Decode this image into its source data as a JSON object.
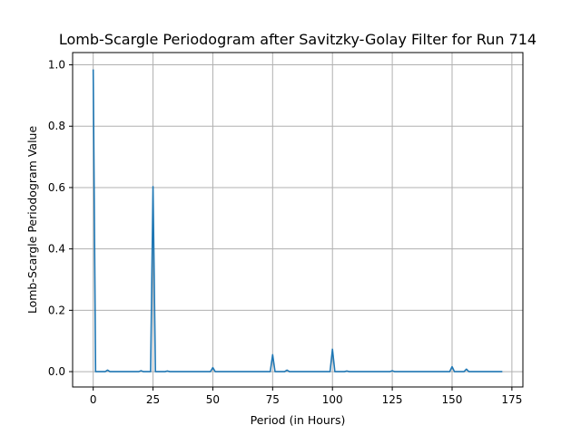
{
  "chart_data": {
    "type": "line",
    "title": "Lomb-Scargle Periodogram after Savitzky-Golay Filter for Run 714",
    "xlabel": "Period (in Hours)",
    "ylabel": "Lomb-Scargle Periodogram Value",
    "xlim": [
      -8.6,
      179.6
    ],
    "ylim": [
      -0.05,
      1.04
    ],
    "xticks": [
      0,
      25,
      50,
      75,
      100,
      125,
      150,
      175
    ],
    "yticks": [
      0.0,
      0.2,
      0.4,
      0.6,
      0.8,
      1.0
    ],
    "xtick_labels": [
      "0",
      "25",
      "50",
      "75",
      "100",
      "125",
      "150",
      "175"
    ],
    "ytick_labels": [
      "0.0",
      "0.2",
      "0.4",
      "0.6",
      "0.8",
      "1.0"
    ],
    "grid": true,
    "series": [
      {
        "color": "#1f77b4",
        "x": [
          0,
          1,
          3,
          5,
          6,
          7,
          9,
          11,
          13,
          15,
          17,
          19,
          20,
          21,
          23,
          24,
          25,
          26,
          28,
          30,
          31,
          32,
          34,
          36,
          38,
          40,
          42,
          44,
          46,
          48,
          49,
          50,
          51,
          53,
          55,
          57,
          59,
          61,
          63,
          65,
          67,
          69,
          71,
          73,
          74,
          75,
          76,
          78,
          80,
          81,
          82,
          84,
          86,
          88,
          90,
          92,
          94,
          96,
          98,
          99,
          100,
          101,
          103,
          105,
          106,
          107,
          109,
          111,
          113,
          115,
          117,
          119,
          121,
          123,
          124,
          125,
          126,
          128,
          130,
          132,
          134,
          136,
          138,
          140,
          142,
          144,
          146,
          148,
          149,
          150,
          151,
          153,
          155,
          156,
          157,
          159,
          161,
          163,
          165,
          167,
          169,
          171
        ],
        "y": [
          0.985,
          0.0,
          0.0,
          0.0,
          0.005,
          0.0,
          0.0,
          0.0,
          0.0,
          0.0,
          0.0,
          0.0,
          0.003,
          0.0,
          0.0,
          0.0,
          0.603,
          0.0,
          0.0,
          0.0,
          0.002,
          0.0,
          0.0,
          0.0,
          0.0,
          0.0,
          0.0,
          0.0,
          0.0,
          0.0,
          0.0,
          0.013,
          0.0,
          0.0,
          0.0,
          0.0,
          0.0,
          0.0,
          0.0,
          0.0,
          0.0,
          0.0,
          0.0,
          0.0,
          0.0,
          0.055,
          0.0,
          0.0,
          0.0,
          0.005,
          0.0,
          0.0,
          0.0,
          0.0,
          0.0,
          0.0,
          0.0,
          0.0,
          0.0,
          0.0,
          0.073,
          0.0,
          0.0,
          0.0,
          0.002,
          0.0,
          0.0,
          0.0,
          0.0,
          0.0,
          0.0,
          0.0,
          0.0,
          0.0,
          0.0,
          0.003,
          0.0,
          0.0,
          0.0,
          0.0,
          0.0,
          0.0,
          0.0,
          0.0,
          0.0,
          0.0,
          0.0,
          0.0,
          0.0,
          0.016,
          0.0,
          0.0,
          0.0,
          0.008,
          0.0,
          0.0,
          0.0,
          0.0,
          0.0,
          0.0,
          0.0,
          0.0
        ]
      }
    ]
  }
}
